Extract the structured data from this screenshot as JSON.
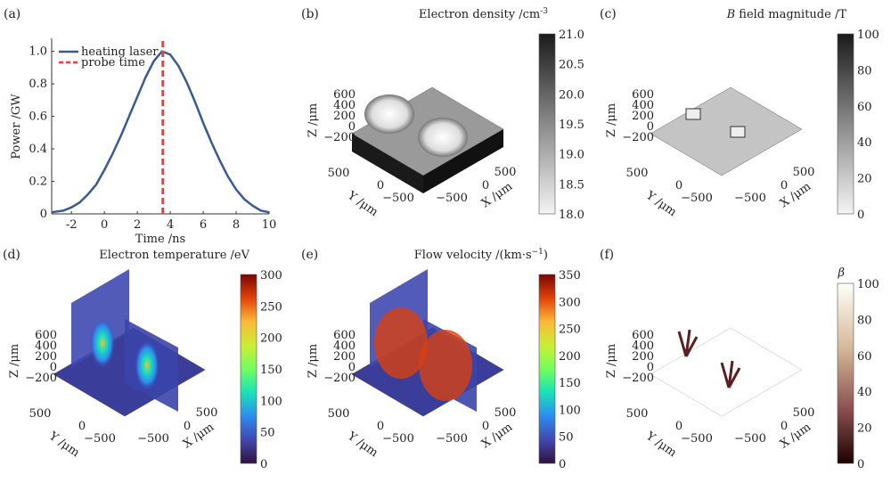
{
  "chart_data": [
    {
      "panel": "(a)",
      "type": "line",
      "xlabel": "Time /ns",
      "ylabel": "Power /GW",
      "xlim": [
        -3.2,
        10
      ],
      "ylim": [
        0,
        1.08
      ],
      "xticks": [
        "-2",
        "0",
        "2",
        "4",
        "6",
        "8",
        "10"
      ],
      "xtick_values": [
        -2,
        0,
        2,
        4,
        6,
        8,
        10
      ],
      "yticks": [
        "0",
        "0.2",
        "0.4",
        "0.6",
        "0.8",
        "1.0"
      ],
      "ytick_values": [
        0,
        0.2,
        0.4,
        0.6,
        0.8,
        1.0
      ],
      "legend_position": "top-left",
      "series": [
        {
          "name": "heating laser",
          "color": "#3a5a94",
          "style": "solid",
          "x": [
            -3.2,
            -2.5,
            -2,
            -1.5,
            -1,
            -0.5,
            0,
            0.5,
            1,
            1.5,
            2,
            2.5,
            3,
            3.5,
            4,
            4.5,
            5,
            5.5,
            6,
            6.5,
            7,
            7.5,
            8,
            8.5,
            9,
            9.5,
            10
          ],
          "y": [
            0.01,
            0.02,
            0.04,
            0.07,
            0.12,
            0.18,
            0.27,
            0.37,
            0.48,
            0.6,
            0.72,
            0.84,
            0.94,
            1.0,
            0.98,
            0.91,
            0.81,
            0.69,
            0.56,
            0.44,
            0.33,
            0.23,
            0.15,
            0.09,
            0.05,
            0.02,
            0.01
          ]
        },
        {
          "name": "probe time",
          "color": "#e84040",
          "style": "dashed",
          "x": [
            3.55,
            3.55
          ],
          "y": [
            0,
            1.08
          ]
        }
      ]
    },
    {
      "panel": "(b)",
      "type": "surface3d",
      "title": "Electron density /cm",
      "title_sup": "-3",
      "colormap": "gray",
      "colorbar_range": [
        18,
        21
      ],
      "colorbar_ticks": [
        "21.0",
        "20.5",
        "20.0",
        "19.5",
        "19.0",
        "18.5",
        "18.0"
      ],
      "zlabel": "Z /μm",
      "ylabel": "Y /μm",
      "xlabel": "X /μm",
      "zticks": [
        "600",
        "400",
        "200",
        "0",
        "−200"
      ],
      "yticks": [
        "500",
        "0",
        "−500"
      ],
      "xticks": [
        "500",
        "0",
        "−500"
      ]
    },
    {
      "panel": "(c)",
      "type": "surface3d",
      "title_italic": "B",
      "title": " field magnitude /T",
      "colormap": "gray",
      "colorbar_range": [
        0,
        100
      ],
      "colorbar_ticks": [
        "100",
        "80",
        "60",
        "40",
        "20",
        "0"
      ],
      "zlabel": "Z /μm",
      "ylabel": "Y /μm",
      "xlabel": "X /μm",
      "zticks": [
        "600",
        "400",
        "200",
        "0",
        "−200"
      ],
      "yticks": [
        "500",
        "0",
        "−500"
      ],
      "xticks": [
        "500",
        "0",
        "−500"
      ]
    },
    {
      "panel": "(d)",
      "type": "slice3d",
      "title": "Electron temperature /eV",
      "colormap": "turbo",
      "colorbar_range": [
        0,
        300
      ],
      "colorbar_ticks": [
        "300",
        "250",
        "200",
        "150",
        "100",
        "50",
        "0"
      ],
      "zlabel": "Z /μm",
      "ylabel": "Y /μm",
      "xlabel": "X /μm",
      "zticks": [
        "600",
        "400",
        "200",
        "0",
        "−200"
      ],
      "yticks": [
        "500",
        "0",
        "−500"
      ],
      "xticks": [
        "500",
        "0",
        "−500"
      ]
    },
    {
      "panel": "(e)",
      "type": "slice3d",
      "title": "Flow velocity /(km·s",
      "title_sup": "−1",
      "title_end": ")",
      "colormap": "turbo",
      "colorbar_range": [
        0,
        350
      ],
      "colorbar_ticks": [
        "350",
        "300",
        "250",
        "200",
        "150",
        "100",
        "50",
        "0"
      ],
      "zlabel": "Z /μm",
      "ylabel": "Y /μm",
      "xlabel": "X /μm",
      "zticks": [
        "600",
        "400",
        "200",
        "0",
        "−200"
      ],
      "yticks": [
        "500",
        "0",
        "−500"
      ],
      "xticks": [
        "500",
        "0",
        "−500"
      ]
    },
    {
      "panel": "(f)",
      "type": "isosurface3d",
      "title": "β",
      "colormap": "pink",
      "colorbar_range": [
        0,
        100
      ],
      "colorbar_ticks": [
        "100",
        "80",
        "60",
        "40",
        "20",
        "0"
      ],
      "zlabel": "Z /μm",
      "ylabel": "Y /μm",
      "xlabel": "X /μm",
      "zticks": [
        "600",
        "400",
        "200",
        "0",
        "−200"
      ],
      "yticks": [
        "500",
        "0",
        "−500"
      ],
      "xticks": [
        "500",
        "0",
        "−500"
      ]
    }
  ]
}
